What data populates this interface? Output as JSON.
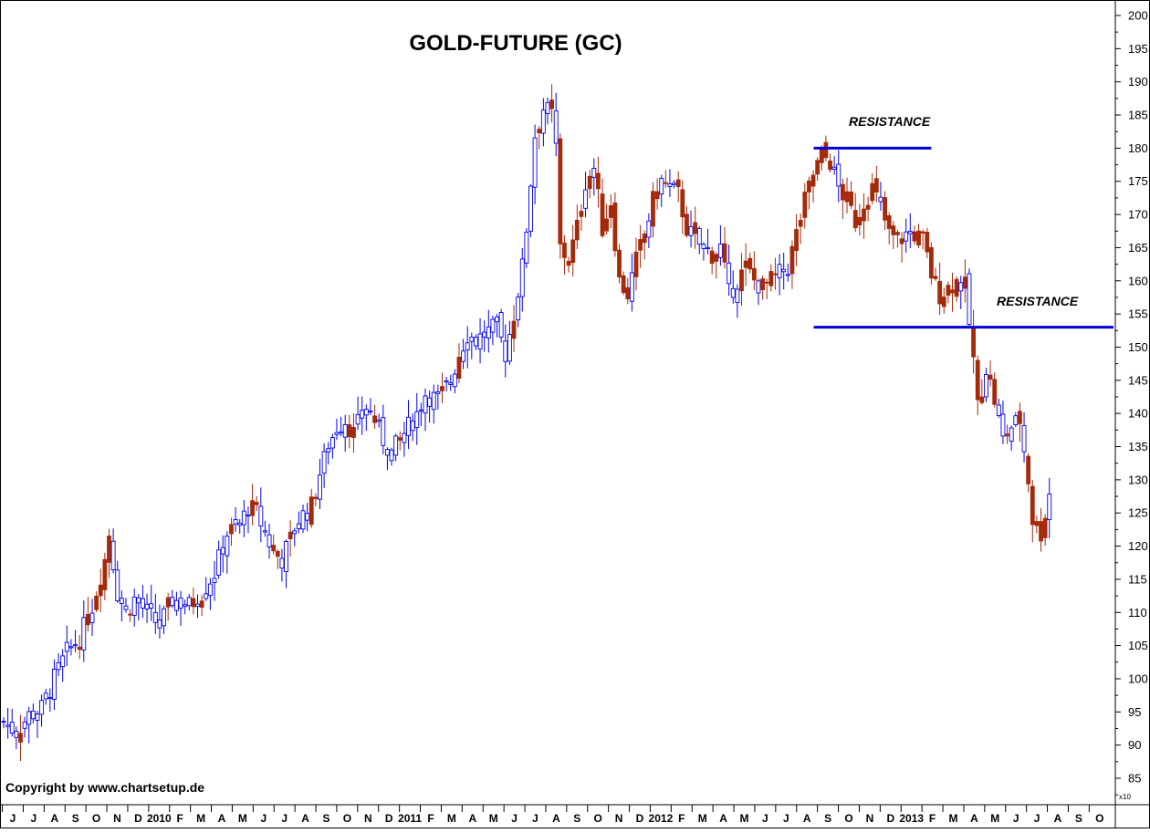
{
  "chart_data": {
    "type": "candlestick",
    "title": "GOLD-FUTURE  (GC)",
    "copyright": "Copyright by www.chartsetup.de",
    "y_scale_label": "x10",
    "ylim": [
      82,
      202
    ],
    "y_ticks": [
      85,
      90,
      95,
      100,
      105,
      110,
      115,
      120,
      125,
      130,
      135,
      140,
      145,
      150,
      155,
      160,
      165,
      170,
      175,
      180,
      185,
      190,
      195,
      200
    ],
    "x_axis_labels": [
      "J",
      "J",
      "A",
      "S",
      "O",
      "N",
      "D",
      "2010",
      "F",
      "M",
      "A",
      "M",
      "J",
      "J",
      "A",
      "S",
      "O",
      "N",
      "D",
      "2011",
      "F",
      "M",
      "A",
      "M",
      "J",
      "J",
      "A",
      "S",
      "O",
      "N",
      "D",
      "2012",
      "F",
      "M",
      "A",
      "M",
      "J",
      "J",
      "A",
      "S",
      "O",
      "N",
      "D",
      "2013",
      "F",
      "M",
      "A",
      "M",
      "J",
      "J",
      "A",
      "S",
      "O"
    ],
    "colors": {
      "up": "#0000ee",
      "down": "#a52a0a",
      "resistance": "#0000dd",
      "axis": "#000000"
    },
    "annotations": [
      {
        "text": "RESISTANCE",
        "level": 180,
        "line_from_week": 192,
        "line_to_week": 220
      },
      {
        "text": "RESISTANCE",
        "level": 153,
        "line_from_week": 192,
        "line_to_week": 265
      }
    ],
    "series": [
      {
        "name": "",
        "trend_points_week_close": [
          [
            0,
            93.5
          ],
          [
            3,
            92
          ],
          [
            6,
            94.5
          ],
          [
            9,
            95.5
          ],
          [
            12,
            100
          ],
          [
            15,
            104
          ],
          [
            18,
            106
          ],
          [
            21,
            111
          ],
          [
            24,
            118
          ],
          [
            25,
            122
          ],
          [
            27,
            113
          ],
          [
            29,
            110
          ],
          [
            31,
            112
          ],
          [
            34,
            110
          ],
          [
            37,
            108
          ],
          [
            40,
            112
          ],
          [
            44,
            111
          ],
          [
            47,
            113
          ],
          [
            50,
            116
          ],
          [
            53,
            122
          ],
          [
            56,
            123
          ],
          [
            58,
            126
          ],
          [
            60,
            125
          ],
          [
            62,
            122
          ],
          [
            64,
            119
          ],
          [
            66,
            118
          ],
          [
            68,
            121
          ],
          [
            70,
            124
          ],
          [
            73,
            126
          ],
          [
            75,
            131
          ],
          [
            77,
            135
          ],
          [
            79,
            138
          ],
          [
            81,
            139
          ],
          [
            83,
            137
          ],
          [
            86,
            141
          ],
          [
            88,
            139
          ],
          [
            90,
            136
          ],
          [
            92,
            134
          ],
          [
            94,
            136
          ],
          [
            96,
            138
          ],
          [
            98,
            140
          ],
          [
            100,
            143
          ],
          [
            103,
            142
          ],
          [
            106,
            145
          ],
          [
            108,
            149
          ],
          [
            110,
            152
          ],
          [
            112,
            151
          ],
          [
            114,
            152
          ],
          [
            117,
            153
          ],
          [
            119,
            149
          ],
          [
            121,
            155
          ],
          [
            123,
            162
          ],
          [
            124,
            168
          ],
          [
            125,
            175
          ],
          [
            126,
            182
          ],
          [
            128,
            186
          ],
          [
            130,
            185
          ],
          [
            131,
            180
          ],
          [
            132,
            165
          ],
          [
            134,
            163
          ],
          [
            136,
            168
          ],
          [
            138,
            175
          ],
          [
            140,
            177
          ],
          [
            142,
            168
          ],
          [
            144,
            172
          ],
          [
            146,
            160
          ],
          [
            148,
            158
          ],
          [
            150,
            163
          ],
          [
            152,
            167
          ],
          [
            154,
            172
          ],
          [
            156,
            175
          ],
          [
            158,
            174
          ],
          [
            160,
            173
          ],
          [
            162,
            168
          ],
          [
            164,
            166
          ],
          [
            166,
            165
          ],
          [
            168,
            164
          ],
          [
            170,
            165
          ],
          [
            172,
            158
          ],
          [
            174,
            160
          ],
          [
            176,
            162
          ],
          [
            178,
            160
          ],
          [
            180,
            159
          ],
          [
            182,
            160
          ],
          [
            184,
            161
          ],
          [
            186,
            162
          ],
          [
            188,
            167
          ],
          [
            190,
            172
          ],
          [
            192,
            176
          ],
          [
            194,
            179
          ],
          [
            196,
            178
          ],
          [
            198,
            174
          ],
          [
            200,
            172
          ],
          [
            202,
            169
          ],
          [
            204,
            172
          ],
          [
            206,
            174
          ],
          [
            208,
            171
          ],
          [
            210,
            167
          ],
          [
            212,
            166
          ],
          [
            214,
            167
          ],
          [
            216,
            167
          ],
          [
            218,
            166
          ],
          [
            220,
            161
          ],
          [
            222,
            158
          ],
          [
            224,
            159
          ],
          [
            226,
            160
          ],
          [
            228,
            159
          ],
          [
            230,
            148
          ],
          [
            231,
            141
          ],
          [
            233,
            147
          ],
          [
            235,
            142
          ],
          [
            237,
            136
          ],
          [
            239,
            138
          ],
          [
            241,
            139
          ],
          [
            243,
            130
          ],
          [
            244,
            124
          ],
          [
            246,
            122
          ],
          [
            248,
            128
          ]
        ]
      }
    ]
  }
}
